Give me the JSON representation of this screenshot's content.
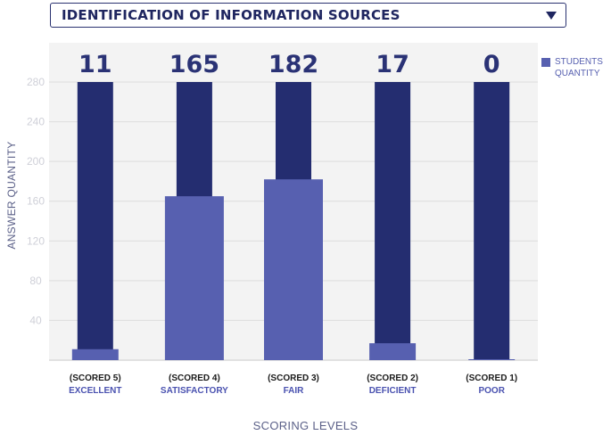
{
  "dropdown": {
    "label": "IDENTIFICATION OF INFORMATION SOURCES",
    "icon": "caret-down-icon"
  },
  "colors": {
    "background_bar": "#242d70",
    "value_bar": "#5760b0",
    "value_label": "#2a3275",
    "level_label": "#4a52b0",
    "grid": "#dddddd",
    "tick": "#cfd0d8"
  },
  "chart_data": {
    "type": "bar",
    "categories": [
      "(SCORED 5)",
      "(SCORED 4)",
      "(SCORED 3)",
      "(SCORED 2)",
      "(SCORED 1)"
    ],
    "level_names": [
      "EXCELLENT",
      "SATISFACTORY",
      "FAIR",
      "DEFICIENT",
      "POOR"
    ],
    "series": [
      {
        "name": "STUDENTS QUANTITY",
        "values": [
          11,
          165,
          182,
          17,
          0
        ]
      }
    ],
    "value_labels": [
      "11",
      "165",
      "182",
      "17",
      "0"
    ],
    "yticks": [
      "40",
      "80",
      "120",
      "160",
      "200",
      "240",
      "280"
    ],
    "ylim": [
      0,
      280
    ],
    "background_bar_value": 280,
    "xlabel": "SCORING LEVELS",
    "ylabel": "ANSWER QUANTITY",
    "legend_position": "top-right",
    "grid": true
  }
}
